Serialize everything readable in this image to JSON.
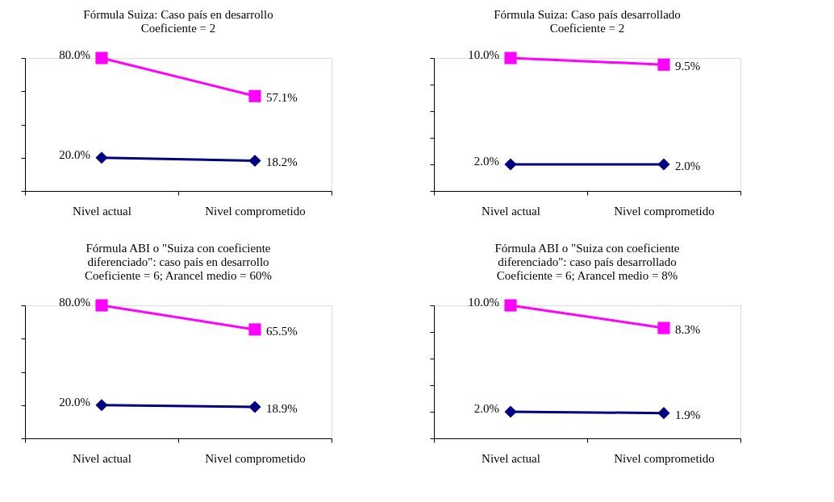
{
  "chart_data": [
    {
      "type": "line",
      "title": "Fórmula Suiza:  Caso país en desarrollo\nCoeficiente = 2",
      "categories": [
        "Nivel actual",
        "Nivel comprometido"
      ],
      "tick_labels": "x",
      "grid": false,
      "legend": false,
      "series": [
        {
          "color": "#ff00ff",
          "marker": "square",
          "values": [
            80.0,
            57.1
          ],
          "value_labels": [
            "80.0%",
            "57.1%"
          ]
        },
        {
          "color": "#000080",
          "marker": "diamond",
          "values": [
            20.0,
            18.2
          ],
          "value_labels": [
            "20.0%",
            "18.2%"
          ]
        }
      ]
    },
    {
      "type": "line",
      "title": "Fórmula Suiza:  Caso país desarrollado\nCoeficiente = 2",
      "categories": [
        "Nivel actual",
        "Nivel comprometido"
      ],
      "tick_labels": "x",
      "grid": false,
      "legend": false,
      "series": [
        {
          "color": "#ff00ff",
          "marker": "square",
          "values": [
            10.0,
            9.5
          ],
          "value_labels": [
            "10.0%",
            "9.5%"
          ]
        },
        {
          "color": "#000080",
          "marker": "diamond",
          "values": [
            2.0,
            2.0
          ],
          "value_labels": [
            "2.0%",
            "2.0%"
          ]
        }
      ]
    },
    {
      "type": "line",
      "title": "Fórmula ABI o \"Suiza con coeficiente\ndiferenciado\": caso país en desarrollo\nCoeficiente = 6; Arancel medio = 60%",
      "categories": [
        "Nivel actual",
        "Nivel comprometido"
      ],
      "tick_labels": "x",
      "grid": false,
      "legend": false,
      "series": [
        {
          "color": "#ff00ff",
          "marker": "square",
          "values": [
            80.0,
            65.5
          ],
          "value_labels": [
            "80.0%",
            "65.5%"
          ]
        },
        {
          "color": "#000080",
          "marker": "diamond",
          "values": [
            20.0,
            18.9
          ],
          "value_labels": [
            "20.0%",
            "18.9%"
          ]
        }
      ]
    },
    {
      "type": "line",
      "title": "Fórmula ABI o \"Suiza con coeficiente\ndiferenciado\":  caso país desarrollado\nCoeficiente = 6; Arancel medio = 8%",
      "categories": [
        "Nivel actual",
        "Nivel comprometido"
      ],
      "tick_labels": "x",
      "grid": false,
      "legend": false,
      "series": [
        {
          "color": "#ff00ff",
          "marker": "square",
          "values": [
            10.0,
            8.3
          ],
          "value_labels": [
            "10.0%",
            "8.3%"
          ]
        },
        {
          "color": "#000080",
          "marker": "diamond",
          "values": [
            2.0,
            1.9
          ],
          "value_labels": [
            "2.0%",
            "1.9%"
          ]
        }
      ]
    }
  ]
}
